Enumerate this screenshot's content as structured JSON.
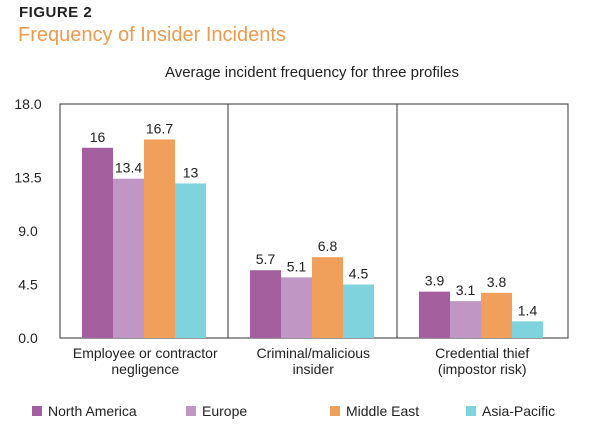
{
  "figure": {
    "label": "FIGURE 2",
    "title": "Frequency of Insider Incidents"
  },
  "chart_data": {
    "type": "bar",
    "title": "Average incident frequency for three profiles",
    "categories": [
      [
        "Employee or contractor",
        "negligence"
      ],
      [
        "Criminal/malicious",
        "insider"
      ],
      [
        "Credential thief",
        "(impostor risk)"
      ]
    ],
    "series": [
      {
        "name": "North America",
        "color": "#a35f9e",
        "values": [
          16,
          5.7,
          3.9
        ]
      },
      {
        "name": "Europe",
        "color": "#c096c4",
        "values": [
          13.4,
          5.1,
          3.1
        ]
      },
      {
        "name": "Middle East",
        "color": "#f0a05a",
        "values": [
          16.7,
          6.8,
          3.8
        ]
      },
      {
        "name": "Asia-Pacific",
        "color": "#7fd3dc",
        "values": [
          13,
          4.5,
          1.4
        ]
      }
    ],
    "yticks": [
      "0.0",
      "4.5",
      "9.0",
      "13.5",
      "18.0"
    ],
    "ylim": [
      0,
      18
    ],
    "grid": false,
    "legend_position": "bottom"
  }
}
